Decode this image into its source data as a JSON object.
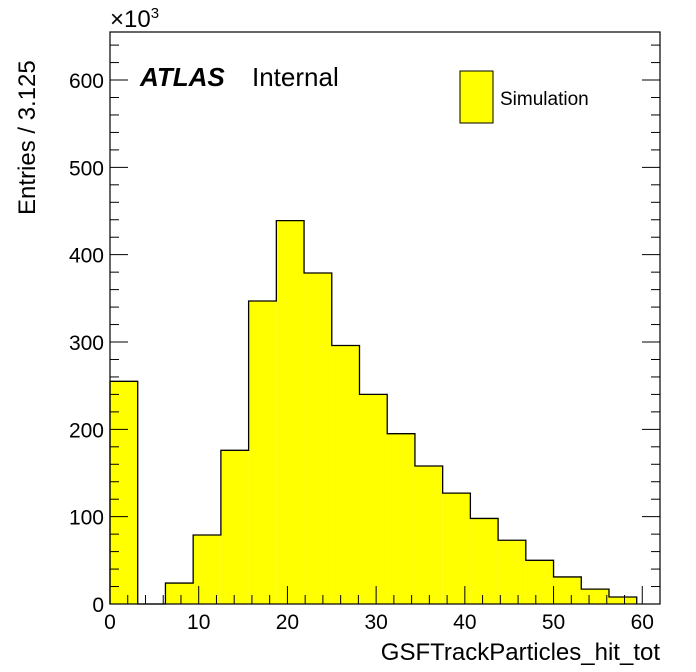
{
  "chart_data": {
    "type": "bar",
    "histogram": true,
    "xlabel": "GSFTrackParticles_hit_tot",
    "ylabel": "Entries / 3.125",
    "y_multiplier_label": "×10",
    "y_multiplier_exponent": "3",
    "xlim": [
      0,
      62
    ],
    "ylim": [
      0,
      655
    ],
    "bin_width": 3.125,
    "bin_edges": [
      0,
      3.125,
      6.25,
      9.375,
      12.5,
      15.625,
      18.75,
      21.875,
      25,
      28.125,
      31.25,
      34.375,
      37.5,
      40.625,
      43.75,
      46.875,
      50,
      53.125,
      56.25,
      59.375
    ],
    "values": [
      255,
      0,
      24,
      79,
      176,
      347,
      439,
      379,
      296,
      240,
      195,
      158,
      127,
      98,
      73,
      50,
      31,
      17,
      8
    ],
    "x_ticks": [
      "0",
      "10",
      "20",
      "30",
      "40",
      "50",
      "60"
    ],
    "x_tick_values": [
      0,
      10,
      20,
      30,
      40,
      50,
      60
    ],
    "y_ticks": [
      "0",
      "100",
      "200",
      "300",
      "400",
      "500",
      "600"
    ],
    "y_tick_values": [
      0,
      100,
      200,
      300,
      400,
      500,
      600
    ],
    "series": [
      {
        "name": "Simulation",
        "color": "#ffff00"
      }
    ],
    "legend_position": "top-right",
    "grid": false
  },
  "labels": {
    "atlas": "ATLAS",
    "internal": "Internal"
  }
}
